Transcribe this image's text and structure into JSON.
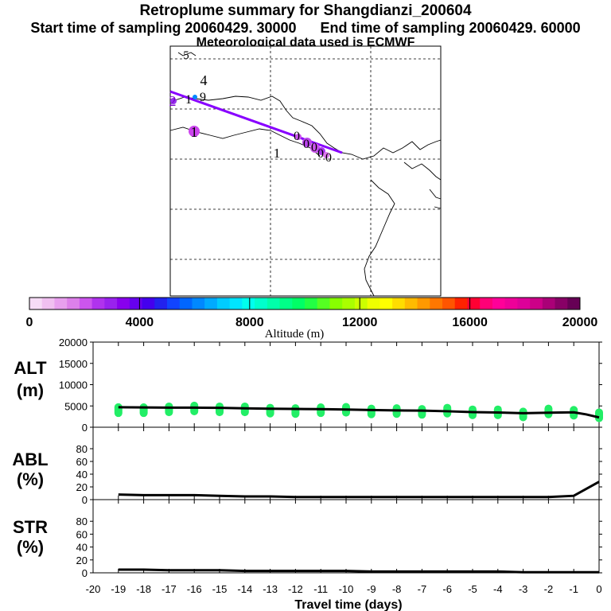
{
  "header": {
    "title": "Retroplume summary for Shangdianzi_200604",
    "start_label": "Start time of sampling 20060429. 30000",
    "end_label": "End time of sampling 20060429. 60000",
    "met_label": "Meteorological data used is ECMWF"
  },
  "map": {
    "markers": [
      {
        "label": "5",
        "color": "#000000"
      },
      {
        "label": "4",
        "color": "#000000"
      },
      {
        "label": "2",
        "color": "#7a00cc"
      },
      {
        "label": "1",
        "color": "#000000"
      },
      {
        "label": "9",
        "color": "#000000"
      },
      {
        "label": "1",
        "color": "#000000"
      },
      {
        "label": "1",
        "color": "#000000"
      },
      {
        "label": "0",
        "color": "#000000"
      },
      {
        "label": "0",
        "color": "#000000"
      },
      {
        "label": "0",
        "color": "#000000"
      },
      {
        "label": "0",
        "color": "#000000"
      },
      {
        "label": "0",
        "color": "#000000"
      }
    ],
    "trajectory_color": "#8800ff"
  },
  "colorbar": {
    "title": "Altitude (m)",
    "ticks": [
      "0",
      "4000",
      "8000",
      "12000",
      "16000",
      "20000"
    ],
    "colors": [
      "#f6dcf6",
      "#f0c0f0",
      "#e8a0ee",
      "#dd80ea",
      "#cc55ee",
      "#b033ee",
      "#9922ee",
      "#8800ee",
      "#6600ee",
      "#4400ee",
      "#2222ee",
      "#1144ff",
      "#0066ff",
      "#0088ff",
      "#00aaff",
      "#00ccff",
      "#00e5ff",
      "#00ffee",
      "#00ffcc",
      "#00ffaa",
      "#00ff88",
      "#00ff66",
      "#22ff44",
      "#55ff22",
      "#88ff00",
      "#aaff00",
      "#ccff00",
      "#eeff00",
      "#ffff00",
      "#ffdd00",
      "#ffbb00",
      "#ff9900",
      "#ff7700",
      "#ff5500",
      "#ff2200",
      "#ff0033",
      "#ff0077",
      "#ff0099",
      "#ee0099",
      "#dd0099",
      "#cc0088",
      "#aa0077",
      "#880066",
      "#660055"
    ]
  },
  "chart_data": [
    {
      "type": "scatter",
      "panel": "ALT",
      "ylabel": "ALT\n(m)",
      "ylabel_lines": [
        "ALT",
        "(m)"
      ],
      "ylim": [
        0,
        20000
      ],
      "yticks": [
        "20000",
        "15000",
        "10000",
        "5000",
        "0"
      ],
      "xlim": [
        -20,
        0
      ],
      "points_color": "#22ee66",
      "mean_line": {
        "x": [
          -19,
          -18,
          -17,
          -16,
          -15,
          -14,
          -13,
          -12,
          -11,
          -10,
          -9,
          -8,
          -7,
          -6,
          -5,
          -4,
          -3,
          -2,
          -1,
          -0.5,
          0
        ],
        "y": [
          4700,
          4650,
          4600,
          4600,
          4550,
          4450,
          4350,
          4300,
          4250,
          4150,
          4050,
          3950,
          3900,
          3750,
          3550,
          3450,
          3300,
          3400,
          3500,
          3000,
          2300
        ]
      },
      "scatter_x": [
        -19,
        -18,
        -17,
        -16,
        -15,
        -14,
        -13,
        -12,
        -11,
        -10,
        -9,
        -8,
        -7,
        -6,
        -5,
        -4,
        -3,
        -2,
        -1,
        0
      ],
      "scatter_spread": [
        4800,
        4800,
        5000,
        5200,
        5000,
        5000,
        4700,
        4600,
        4800,
        4900,
        4500,
        4600,
        4400,
        4700,
        4300,
        4300,
        3800,
        4500,
        4200,
        3600
      ]
    },
    {
      "type": "line",
      "panel": "ABL",
      "ylabel": "ABL\n(%)",
      "ylabel_lines": [
        "ABL",
        "(%)"
      ],
      "ylim": [
        0,
        100
      ],
      "yticks": [
        "80",
        "60",
        "40",
        "20",
        "0"
      ],
      "x": [
        -19,
        -18,
        -17,
        -16,
        -15,
        -14,
        -13,
        -12,
        -11,
        -10,
        -9,
        -8,
        -7,
        -6,
        -5,
        -4,
        -3,
        -2,
        -1,
        0
      ],
      "y": [
        8,
        7,
        7,
        7,
        6,
        5,
        5,
        4,
        4,
        4,
        4,
        4,
        4,
        4,
        4,
        4,
        4,
        4,
        6,
        28
      ]
    },
    {
      "type": "line",
      "panel": "STR",
      "ylabel": "STR\n(%)",
      "ylabel_lines": [
        "STR",
        "(%)"
      ],
      "ylim": [
        0,
        100
      ],
      "yticks": [
        "80",
        "60",
        "40",
        "20",
        "0"
      ],
      "x": [
        -19,
        -18,
        -17,
        -16,
        -15,
        -14,
        -13,
        -12,
        -11,
        -10,
        -9,
        -8,
        -7,
        -6,
        -5,
        -4,
        -3,
        -2,
        -1,
        0
      ],
      "y": [
        5,
        5,
        4,
        4,
        4,
        3,
        3,
        3,
        3,
        3,
        2,
        2,
        2,
        2,
        2,
        2,
        1,
        1,
        1,
        1
      ]
    }
  ],
  "xaxis": {
    "title": "Travel time (days)",
    "ticks": [
      "-20",
      "-19",
      "-18",
      "-17",
      "-16",
      "-15",
      "-14",
      "-13",
      "-12",
      "-11",
      "-10",
      "-9",
      "-8",
      "-7",
      "-6",
      "-5",
      "-4",
      "-3",
      "-2",
      "-1",
      "0"
    ]
  }
}
